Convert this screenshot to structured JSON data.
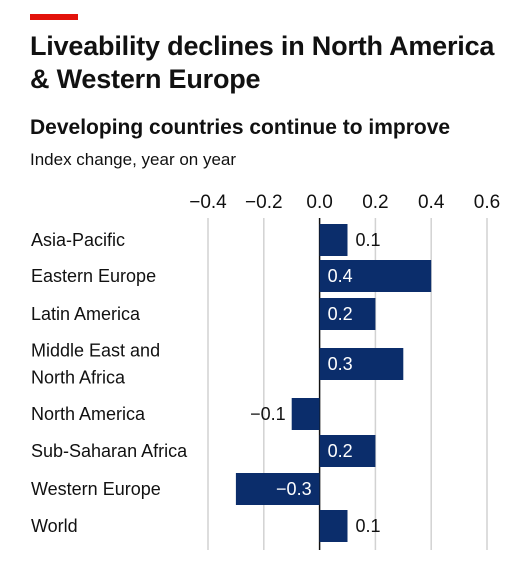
{
  "header": {
    "title": "Liveability declines in North America & Western Europe",
    "subtitle": "Developing countries continue to improve",
    "description": "Index change, year on year"
  },
  "colors": {
    "accent": "#e3120b",
    "bar": "#0b2d6b",
    "grid": "#d2d2d2",
    "zero_line": "#111111"
  },
  "chart_data": {
    "type": "bar",
    "orientation": "horizontal",
    "categories": [
      "Asia-Pacific",
      "Eastern Europe",
      "Latin America",
      "Middle East and North Africa",
      "North America",
      "Sub-Saharan Africa",
      "Western Europe",
      "World"
    ],
    "category_lines": [
      [
        "Asia-Pacific"
      ],
      [
        "Eastern Europe"
      ],
      [
        "Latin America"
      ],
      [
        "Middle East and",
        "North Africa"
      ],
      [
        "North America"
      ],
      [
        "Sub-Saharan Africa"
      ],
      [
        "Western Europe"
      ],
      [
        "World"
      ]
    ],
    "values": [
      0.1,
      0.4,
      0.2,
      0.3,
      -0.1,
      0.2,
      -0.3,
      0.1
    ],
    "value_labels": [
      "0.1",
      "0.4",
      "0.2",
      "0.3",
      "−0.1",
      "0.2",
      "−0.3",
      "0.1"
    ],
    "xlim": [
      -0.4,
      0.6
    ],
    "xticks": [
      -0.4,
      -0.2,
      0,
      0.2,
      0.4,
      0.6
    ],
    "xtick_labels": [
      "−0.4",
      "−0.2",
      "0.0",
      "0.2",
      "0.4",
      "0.6"
    ],
    "grid": true,
    "axis_position": "top"
  }
}
